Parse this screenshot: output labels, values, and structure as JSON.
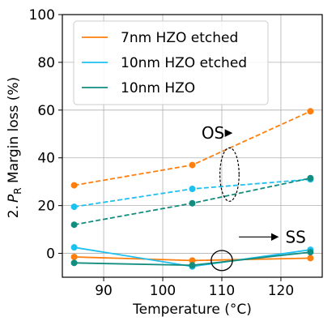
{
  "chart_data": {
    "type": "line",
    "title": "",
    "xlabel": "Temperature (°C)",
    "ylabel_prefix": "2.",
    "ylabel_symbol": "P",
    "ylabel_sub": "R",
    "ylabel_suffix": " Margin loss (%)",
    "xlim": [
      83,
      127
    ],
    "ylim": [
      -10,
      100
    ],
    "xticks": [
      90,
      100,
      110,
      120
    ],
    "yticks": [
      0,
      20,
      40,
      60,
      80,
      100
    ],
    "grid": true,
    "legend": "upper-left",
    "series": [
      {
        "name": "7nm HZO etched",
        "color": "#ff7f0e",
        "group": "OS",
        "x": [
          85,
          105,
          125
        ],
        "y": [
          28.5,
          37,
          59.5
        ]
      },
      {
        "name": "10nm HZO etched",
        "color": "#1ec0f0",
        "group": "OS",
        "x": [
          85,
          105,
          125
        ],
        "y": [
          19.5,
          27,
          31
        ]
      },
      {
        "name": "10nm HZO",
        "color": "#138d80",
        "group": "OS",
        "x": [
          85,
          105,
          125
        ],
        "y": [
          12,
          21,
          31.5
        ]
      },
      {
        "name": "",
        "color": "#ff7f0e",
        "group": "SS",
        "x": [
          85,
          105,
          125
        ],
        "y": [
          -1.5,
          -3,
          -2
        ]
      },
      {
        "name": "",
        "color": "#1ec0f0",
        "group": "SS",
        "x": [
          85,
          105,
          125
        ],
        "y": [
          2.5,
          -5.5,
          1.5
        ]
      },
      {
        "name": "",
        "color": "#138d80",
        "group": "SS",
        "x": [
          85,
          105,
          125
        ],
        "y": [
          -4,
          -5,
          0.5
        ]
      }
    ],
    "annotations": [
      {
        "text": "OS",
        "x": 108.5,
        "y": 48,
        "ellipse_center": [
          111.3,
          33
        ],
        "ellipse_radii": [
          1.2,
          10
        ]
      },
      {
        "text": "SS",
        "x": 122.5,
        "y": 4.5,
        "ellipse_center": [
          110,
          -3
        ],
        "ellipse_radii": [
          1.8,
          3.5
        ]
      }
    ]
  }
}
